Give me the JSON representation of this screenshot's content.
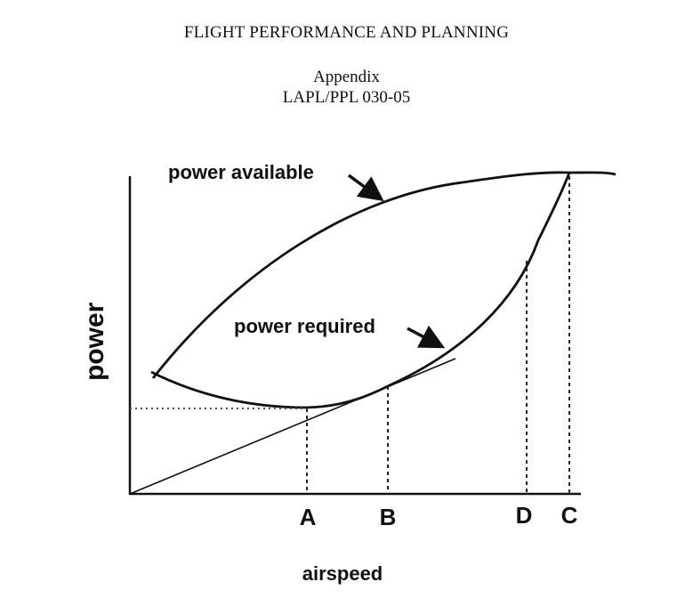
{
  "header": {
    "title": "FLIGHT PERFORMANCE AND PLANNING",
    "appendix": "Appendix",
    "code": "LAPL/PPL 030-05"
  },
  "diagram": {
    "y_axis_label": "power",
    "x_axis_label": "airspeed",
    "curve_labels": {
      "power_available": "power available",
      "power_required": "power required"
    },
    "speed_markers": [
      "A",
      "B",
      "D",
      "C"
    ]
  }
}
